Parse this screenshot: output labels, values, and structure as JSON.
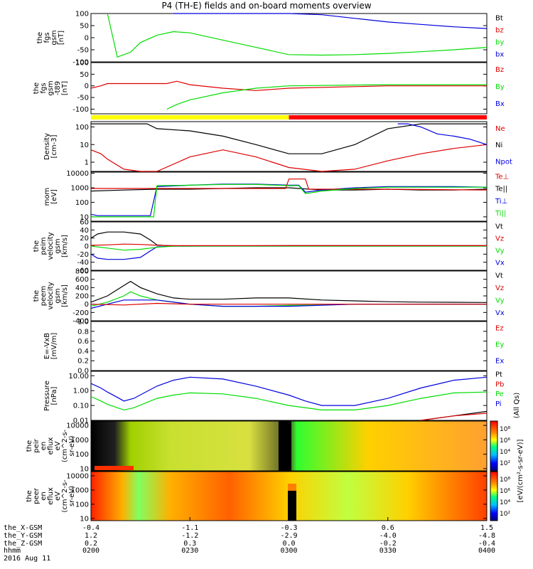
{
  "title": "P4 (TH-E) fields and on-board moments overview",
  "colors": {
    "black": "#000000",
    "red": "#dd0000",
    "green": "#00dd00",
    "blue": "#0000dd",
    "yellow": "#ffff00",
    "bar_red": "#ff0000"
  },
  "panels": [
    {
      "id": "fgs",
      "ylabel": [
        "the",
        "fgs",
        "gsm",
        "[nT]"
      ],
      "ticks": [
        "100",
        "50",
        "0",
        "-50",
        "-100"
      ],
      "legend": [
        {
          "text": "Bt",
          "color": "black"
        },
        {
          "text": "bz",
          "color": "red"
        },
        {
          "text": "by",
          "color": "green"
        },
        {
          "text": "bx",
          "color": "blue"
        }
      ]
    },
    {
      "id": "fgs_dt",
      "ylabel": [
        "the",
        "fgs",
        "gsm",
        "-t89",
        "[nT]"
      ],
      "ticks": [
        "100",
        "50",
        "0",
        "-50",
        "-100"
      ],
      "legend": [
        {
          "text": "Bz",
          "color": "red"
        },
        {
          "text": "By",
          "color": "green"
        },
        {
          "text": "Bx",
          "color": "blue"
        }
      ]
    },
    {
      "id": "density",
      "ylabel": [
        "Density",
        "[cm-3]"
      ],
      "ticks": [
        "100",
        "10",
        "1"
      ],
      "legend": [
        {
          "text": "Ne",
          "color": "red"
        },
        {
          "text": "Ni",
          "color": "black"
        },
        {
          "text": "Npot",
          "color": "blue"
        }
      ]
    },
    {
      "id": "temp",
      "ylabel": [
        "mom",
        "[eV]"
      ],
      "ticks": [
        "10000",
        "1000",
        "100",
        "10"
      ],
      "legend": [
        {
          "text": "Te⊥",
          "color": "red"
        },
        {
          "text": "Te||",
          "color": "black"
        },
        {
          "text": "Ti⊥",
          "color": "blue"
        },
        {
          "text": "Ti||",
          "color": "green"
        }
      ]
    },
    {
      "id": "peim_vel",
      "ylabel": [
        "the",
        "peim",
        "velocity",
        "gsm",
        "[km/s]"
      ],
      "ticks": [
        "60",
        "40",
        "20",
        "0",
        "-20",
        "-40",
        "-60"
      ],
      "legend": [
        {
          "text": "Vt",
          "color": "black"
        },
        {
          "text": "Vz",
          "color": "red"
        },
        {
          "text": "Vy",
          "color": "green"
        },
        {
          "text": "Vx",
          "color": "blue"
        }
      ]
    },
    {
      "id": "peem_vel",
      "ylabel": [
        "the",
        "peem",
        "velocity",
        "gsm",
        "[km/s]"
      ],
      "ticks": [
        "800",
        "600",
        "400",
        "200",
        "0",
        "-200",
        "-400"
      ],
      "legend": [
        {
          "text": "Vt",
          "color": "black"
        },
        {
          "text": "Vz",
          "color": "red"
        },
        {
          "text": "Vy",
          "color": "green"
        },
        {
          "text": "Vx",
          "color": "blue"
        }
      ]
    },
    {
      "id": "efield",
      "ylabel": [
        "E=-VxB",
        "[mV/m]"
      ],
      "ticks": [
        "1.0",
        "0.8",
        "0.6",
        "0.4",
        "0.2",
        "0.0"
      ],
      "legend": [
        {
          "text": "Ez",
          "color": "red"
        },
        {
          "text": "Ey",
          "color": "green"
        },
        {
          "text": "Ex",
          "color": "blue"
        }
      ]
    },
    {
      "id": "pressure",
      "ylabel": [
        "Pressure",
        "[nPa]"
      ],
      "ticks": [
        "10.00",
        "1.00",
        "0.10",
        "0.01"
      ],
      "legend": [
        {
          "text": "Pt",
          "color": "black"
        },
        {
          "text": "Pb",
          "color": "red"
        },
        {
          "text": "Pe",
          "color": "green"
        },
        {
          "text": "Pi",
          "color": "blue"
        },
        {
          "text": "(All Qs)",
          "color": "black"
        }
      ]
    },
    {
      "id": "peir",
      "ylabel": [
        "the",
        "peir",
        "en",
        "eflux",
        "eV",
        "(cm^2-s-",
        "sr-eV)"
      ],
      "ticks": [
        "10000",
        "1000",
        "100",
        "10"
      ],
      "legend": []
    },
    {
      "id": "peer",
      "ylabel": [
        "the",
        "peer",
        "en",
        "eflux",
        "eV",
        "(cm^2-s-",
        "sr-eV)"
      ],
      "ticks": [
        "10000",
        "1000",
        "100",
        "10"
      ],
      "legend": []
    }
  ],
  "colorbar": {
    "label": "[eV/(cm²-s-sr-eV)]",
    "top_ticks": [
      "10⁸",
      "10⁶",
      "10⁴",
      "10²"
    ],
    "bottom_ticks": [
      "10⁸",
      "10⁶",
      "10⁴",
      "10²"
    ]
  },
  "ephemeris": {
    "labels": [
      "the_X-GSM",
      "the_Y-GSM",
      "the_Z-GSM",
      "hhmm",
      "2016 Aug 11"
    ],
    "columns": [
      {
        "x": "-0.4",
        "y": "1.2",
        "z": "0.2",
        "hhmm": "0200"
      },
      {
        "x": "-1.1",
        "y": "-1.2",
        "z": "0.3",
        "hhmm": "0230"
      },
      {
        "x": "-0.3",
        "y": "-2.9",
        "z": "0.0",
        "hhmm": "0300"
      },
      {
        "x": "0.6",
        "y": "-4.0",
        "z": "-0.2",
        "hhmm": "0330"
      },
      {
        "x": "1.5",
        "y": "-4.8",
        "z": "-0.4",
        "hhmm": "0400"
      }
    ]
  },
  "chart_data": {
    "type": "line",
    "title": "P4 (TH-E) fields and on-board moments overview",
    "x_label": "hhmm",
    "x_ticks": [
      "0200",
      "0230",
      "0300",
      "0330",
      "0400"
    ],
    "mode_bar": {
      "segments": [
        {
          "from": "0200",
          "to": "0300",
          "color": "yellow"
        },
        {
          "from": "0300",
          "to": "0400",
          "color": "red"
        }
      ]
    },
    "series": [
      {
        "panel": "fgs",
        "name": "by",
        "color": "green",
        "x": [
          "0205",
          "0208",
          "0212",
          "0215",
          "0220",
          "0225",
          "0230",
          "0240",
          "0250",
          "0300",
          "0310",
          "0320",
          "0330",
          "0340",
          "0350",
          "0400"
        ],
        "y": [
          100,
          -80,
          -60,
          -20,
          10,
          25,
          20,
          -10,
          -40,
          -70,
          -72,
          -70,
          -65,
          -58,
          -50,
          -40
        ]
      },
      {
        "panel": "fgs",
        "name": "bx",
        "color": "blue",
        "x": [
          "0225",
          "0230",
          "0240",
          "0250",
          "0300",
          "0310",
          "0320",
          "0330",
          "0340",
          "0350",
          "0400"
        ],
        "y": [
          100,
          100,
          100,
          100,
          100,
          95,
          80,
          65,
          55,
          45,
          38
        ]
      },
      {
        "panel": "fgs_dt",
        "name": "Bz",
        "color": "red",
        "x": [
          "0200",
          "0203",
          "0205",
          "0223",
          "0226",
          "0230",
          "0240",
          "0250",
          "0300",
          "0330",
          "0400"
        ],
        "y": [
          -10,
          0,
          10,
          10,
          20,
          5,
          -10,
          -20,
          -10,
          0,
          0
        ]
      },
      {
        "panel": "fgs_dt",
        "name": "By",
        "color": "green",
        "x": [
          "0223",
          "0226",
          "0230",
          "0240",
          "0250",
          "0300",
          "0330",
          "0400"
        ],
        "y": [
          -100,
          -80,
          -60,
          -30,
          -10,
          0,
          5,
          5
        ]
      },
      {
        "panel": "density",
        "name": "Ni",
        "color": "black",
        "x": [
          "0200",
          "0210",
          "0217",
          "0220",
          "0230",
          "0240",
          "0250",
          "0300",
          "0310",
          "0320",
          "0330",
          "0340",
          "0350",
          "0400"
        ],
        "y": [
          150,
          150,
          150,
          80,
          60,
          30,
          10,
          3,
          3,
          10,
          80,
          150,
          150,
          150
        ]
      },
      {
        "panel": "density",
        "name": "Ne",
        "color": "red",
        "x": [
          "0200",
          "0203",
          "0205",
          "0210",
          "0215",
          "0220",
          "0230",
          "0240",
          "0250",
          "0300",
          "0310",
          "0320",
          "0330",
          "0340",
          "0350",
          "0400"
        ],
        "y": [
          5,
          3,
          1.5,
          0.4,
          0.12,
          0.3,
          2,
          5,
          2,
          0.5,
          0.3,
          0.4,
          1.2,
          3,
          6,
          10
        ]
      },
      {
        "panel": "density",
        "name": "Npot",
        "color": "blue",
        "x": [
          "0333",
          "0336",
          "0340",
          "0345",
          "0350",
          "0355",
          "0400"
        ],
        "y": [
          150,
          150,
          100,
          40,
          30,
          20,
          10
        ]
      },
      {
        "panel": "temp",
        "name": "Te||",
        "color": "black",
        "x": [
          "0200",
          "0210",
          "0220",
          "0230",
          "0240",
          "0250",
          "0300",
          "0310",
          "0320",
          "0330",
          "0340",
          "0350",
          "0400"
        ],
        "y": [
          600,
          700,
          800,
          800,
          900,
          1000,
          1000,
          700,
          700,
          800,
          700,
          700,
          800
        ]
      },
      {
        "panel": "temp",
        "name": "Ti⊥",
        "color": "blue",
        "x": [
          "0200",
          "0202",
          "0210",
          "0218",
          "0220",
          "0230",
          "0240",
          "0250",
          "0300",
          "0303",
          "0305",
          "0310",
          "0320",
          "0330",
          "0340",
          "0350",
          "0400"
        ],
        "y": [
          15,
          12,
          12,
          12,
          1200,
          1500,
          1800,
          1800,
          1500,
          1500,
          500,
          700,
          1000,
          1200,
          1200,
          1200,
          1100
        ]
      },
      {
        "panel": "temp",
        "name": "Te⊥",
        "color": "red",
        "x": [
          "0200",
          "0230",
          "0255",
          "0259",
          "0300",
          "0305",
          "0306",
          "0330",
          "0400"
        ],
        "y": [
          900,
          900,
          900,
          900,
          4000,
          4000,
          800,
          800,
          700
        ]
      },
      {
        "panel": "temp",
        "name": "Ti||",
        "color": "green",
        "x": [
          "0200",
          "0219",
          "0220",
          "0230",
          "0240",
          "0250",
          "0300",
          "0303",
          "0305",
          "0310",
          "0320",
          "0330",
          "0400"
        ],
        "y": [
          10,
          10,
          1400,
          1500,
          1700,
          1700,
          1400,
          1400,
          400,
          600,
          900,
          1100,
          1100
        ]
      },
      {
        "panel": "peim_vel",
        "name": "Vt",
        "color": "black",
        "x": [
          "0200",
          "0202",
          "0205",
          "0210",
          "0215",
          "0218",
          "0220",
          "0225",
          "0300",
          "0400"
        ],
        "y": [
          20,
          30,
          35,
          35,
          30,
          15,
          3,
          0,
          1,
          1
        ]
      },
      {
        "panel": "peim_vel",
        "name": "Vx",
        "color": "blue",
        "x": [
          "0200",
          "0202",
          "0205",
          "0210",
          "0215",
          "0218",
          "0220",
          "0225",
          "0300",
          "0400"
        ],
        "y": [
          -20,
          -30,
          -33,
          -33,
          -28,
          -12,
          -2,
          0,
          0,
          0
        ]
      },
      {
        "panel": "peim_vel",
        "name": "Vy",
        "color": "green",
        "x": [
          "0200",
          "0205",
          "0210",
          "0215",
          "0220",
          "0225",
          "0300",
          "0400"
        ],
        "y": [
          0,
          -5,
          -10,
          -8,
          -3,
          0,
          0,
          0
        ]
      },
      {
        "panel": "peim_vel",
        "name": "Vz",
        "color": "red",
        "x": [
          "0200",
          "0205",
          "0210",
          "0215",
          "0220",
          "0225",
          "0300",
          "0400"
        ],
        "y": [
          2,
          3,
          5,
          4,
          2,
          1,
          1,
          1
        ]
      },
      {
        "panel": "peem_vel",
        "name": "Vt",
        "color": "black",
        "x": [
          "0200",
          "0205",
          "0210",
          "0212",
          "0215",
          "0220",
          "0225",
          "0230",
          "0240",
          "0250",
          "0300",
          "0310",
          "0320",
          "0330",
          "0340",
          "0400"
        ],
        "y": [
          50,
          200,
          450,
          550,
          400,
          250,
          150,
          120,
          120,
          150,
          150,
          100,
          80,
          60,
          50,
          40
        ]
      },
      {
        "panel": "peem_vel",
        "name": "Vy",
        "color": "green",
        "x": [
          "0200",
          "0205",
          "0210",
          "0212",
          "0215",
          "0220",
          "0230",
          "0240",
          "0250",
          "0300",
          "0310",
          "0320",
          "0330",
          "0400"
        ],
        "y": [
          -50,
          50,
          200,
          300,
          200,
          100,
          0,
          -50,
          -50,
          -30,
          -20,
          0,
          0,
          0
        ]
      },
      {
        "panel": "peem_vel",
        "name": "Vx",
        "color": "blue",
        "x": [
          "0200",
          "0210",
          "0220",
          "0230",
          "0240",
          "0250",
          "0300",
          "0320",
          "0400"
        ],
        "y": [
          -100,
          100,
          100,
          0,
          -50,
          -50,
          -50,
          0,
          0
        ]
      },
      {
        "panel": "peem_vel",
        "name": "Vz",
        "color": "red",
        "x": [
          "0200",
          "0210",
          "0220",
          "0230",
          "0300",
          "0400"
        ],
        "y": [
          0,
          -20,
          20,
          0,
          0,
          0
        ]
      },
      {
        "panel": "pressure",
        "name": "Pi",
        "color": "blue",
        "x": [
          "0200",
          "0203",
          "0205",
          "0208",
          "0210",
          "0213",
          "0220",
          "0225",
          "0230",
          "0240",
          "0250",
          "0300",
          "0305",
          "0310",
          "0320",
          "0330",
          "0340",
          "0350",
          "0400"
        ],
        "y": [
          3,
          1.5,
          0.8,
          0.35,
          0.2,
          0.3,
          2,
          5,
          8,
          6,
          2,
          0.5,
          0.2,
          0.1,
          0.1,
          0.3,
          1.5,
          5,
          8
        ]
      },
      {
        "panel": "pressure",
        "name": "Pe",
        "color": "green",
        "x": [
          "0200",
          "0203",
          "0205",
          "0208",
          "0210",
          "0213",
          "0220",
          "0225",
          "0230",
          "0240",
          "0250",
          "0300",
          "0310",
          "0320",
          "0330",
          "0340",
          "0350",
          "0400"
        ],
        "y": [
          0.4,
          0.2,
          0.12,
          0.07,
          0.05,
          0.07,
          0.3,
          0.5,
          0.7,
          0.6,
          0.3,
          0.1,
          0.05,
          0.05,
          0.1,
          0.3,
          0.7,
          0.8
        ]
      },
      {
        "panel": "pressure",
        "name": "Pt",
        "color": "black",
        "x": [
          "0340",
          "0350",
          "0400"
        ],
        "y": [
          0.01,
          0.02,
          0.04
        ]
      },
      {
        "panel": "pressure",
        "name": "Pb",
        "color": "red",
        "x": [
          "0340",
          "0350",
          "0400"
        ],
        "y": [
          0.01,
          0.02,
          0.03
        ]
      }
    ]
  }
}
